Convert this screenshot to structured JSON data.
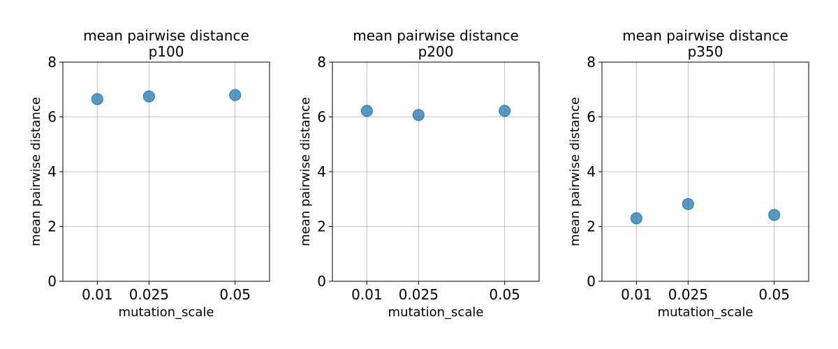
{
  "chart_data": [
    {
      "type": "scatter",
      "title": "mean pairwise distance",
      "subtitle": "p100",
      "xlabel": "mutation_scale",
      "ylabel": "mean pairwise distance",
      "x": [
        0.01,
        0.025,
        0.05
      ],
      "y": [
        6.65,
        6.75,
        6.8
      ],
      "x_ticks": [
        "0.01",
        "0.025",
        "0.05"
      ],
      "y_ticks": [
        0,
        2,
        4,
        6,
        8
      ],
      "xlim": [
        0.0,
        0.06
      ],
      "ylim": [
        0,
        8
      ],
      "grid": true,
      "marker_color": "#1f77b4"
    },
    {
      "type": "scatter",
      "title": "mean pairwise distance",
      "subtitle": "p200",
      "xlabel": "mutation_scale",
      "ylabel": "mean pairwise distance",
      "x": [
        0.01,
        0.025,
        0.05
      ],
      "y": [
        6.22,
        6.07,
        6.22
      ],
      "x_ticks": [
        "0.01",
        "0.025",
        "0.05"
      ],
      "y_ticks": [
        0,
        2,
        4,
        6,
        8
      ],
      "xlim": [
        0.0,
        0.06
      ],
      "ylim": [
        0,
        8
      ],
      "grid": true,
      "marker_color": "#1f77b4"
    },
    {
      "type": "scatter",
      "title": "mean pairwise distance",
      "subtitle": "p350",
      "xlabel": "mutation_scale",
      "ylabel": "mean pairwise distance",
      "x": [
        0.01,
        0.025,
        0.05
      ],
      "y": [
        2.3,
        2.82,
        2.42
      ],
      "x_ticks": [
        "0.01",
        "0.025",
        "0.05"
      ],
      "y_ticks": [
        0,
        2,
        4,
        6,
        8
      ],
      "xlim": [
        0.0,
        0.06
      ],
      "ylim": [
        0,
        8
      ],
      "grid": true,
      "marker_color": "#1f77b4"
    }
  ]
}
